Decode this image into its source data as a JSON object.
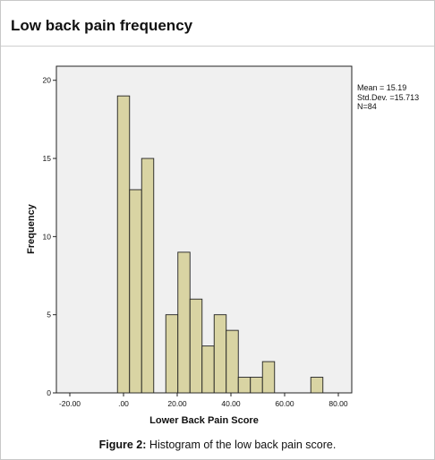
{
  "page": {
    "title": "Low back pain frequency",
    "caption_label": "Figure 2:",
    "caption_text": " Histogram of the low back pain score."
  },
  "chart_data": {
    "type": "bar",
    "title": "",
    "xlabel": "Lower Back Pain Score",
    "ylabel": "Frequency",
    "xlim": [
      -25,
      85
    ],
    "ylim": [
      0,
      20.9
    ],
    "x_ticks": [
      -20,
      0,
      20,
      40,
      60,
      80
    ],
    "x_tick_labels": [
      "-20.00",
      ".00",
      "20.00",
      "40.00",
      "60.00",
      "80.00"
    ],
    "y_ticks": [
      0,
      5,
      10,
      15,
      20
    ],
    "y_tick_labels": [
      "0",
      "5",
      "10",
      "15",
      "20"
    ],
    "bin_width": 4.5,
    "bins": [
      {
        "start": -2.25,
        "end": 2.25,
        "count": 19
      },
      {
        "start": 2.25,
        "end": 6.75,
        "count": 13
      },
      {
        "start": 6.75,
        "end": 11.25,
        "count": 15
      },
      {
        "start": 15.75,
        "end": 20.25,
        "count": 5
      },
      {
        "start": 20.25,
        "end": 24.75,
        "count": 9
      },
      {
        "start": 24.75,
        "end": 29.25,
        "count": 6
      },
      {
        "start": 29.25,
        "end": 33.75,
        "count": 3
      },
      {
        "start": 33.75,
        "end": 38.25,
        "count": 5
      },
      {
        "start": 38.25,
        "end": 42.75,
        "count": 4
      },
      {
        "start": 42.75,
        "end": 47.25,
        "count": 1
      },
      {
        "start": 47.25,
        "end": 51.75,
        "count": 1
      },
      {
        "start": 51.75,
        "end": 56.25,
        "count": 2
      },
      {
        "start": 69.75,
        "end": 74.25,
        "count": 1
      }
    ],
    "stats": {
      "mean": "Mean = 15.19",
      "std": "Std.Dev. =15.713",
      "n": "N=84"
    },
    "bar_color": "#d9d4a3",
    "plot_background": "#f0f0f0",
    "grid": false
  }
}
